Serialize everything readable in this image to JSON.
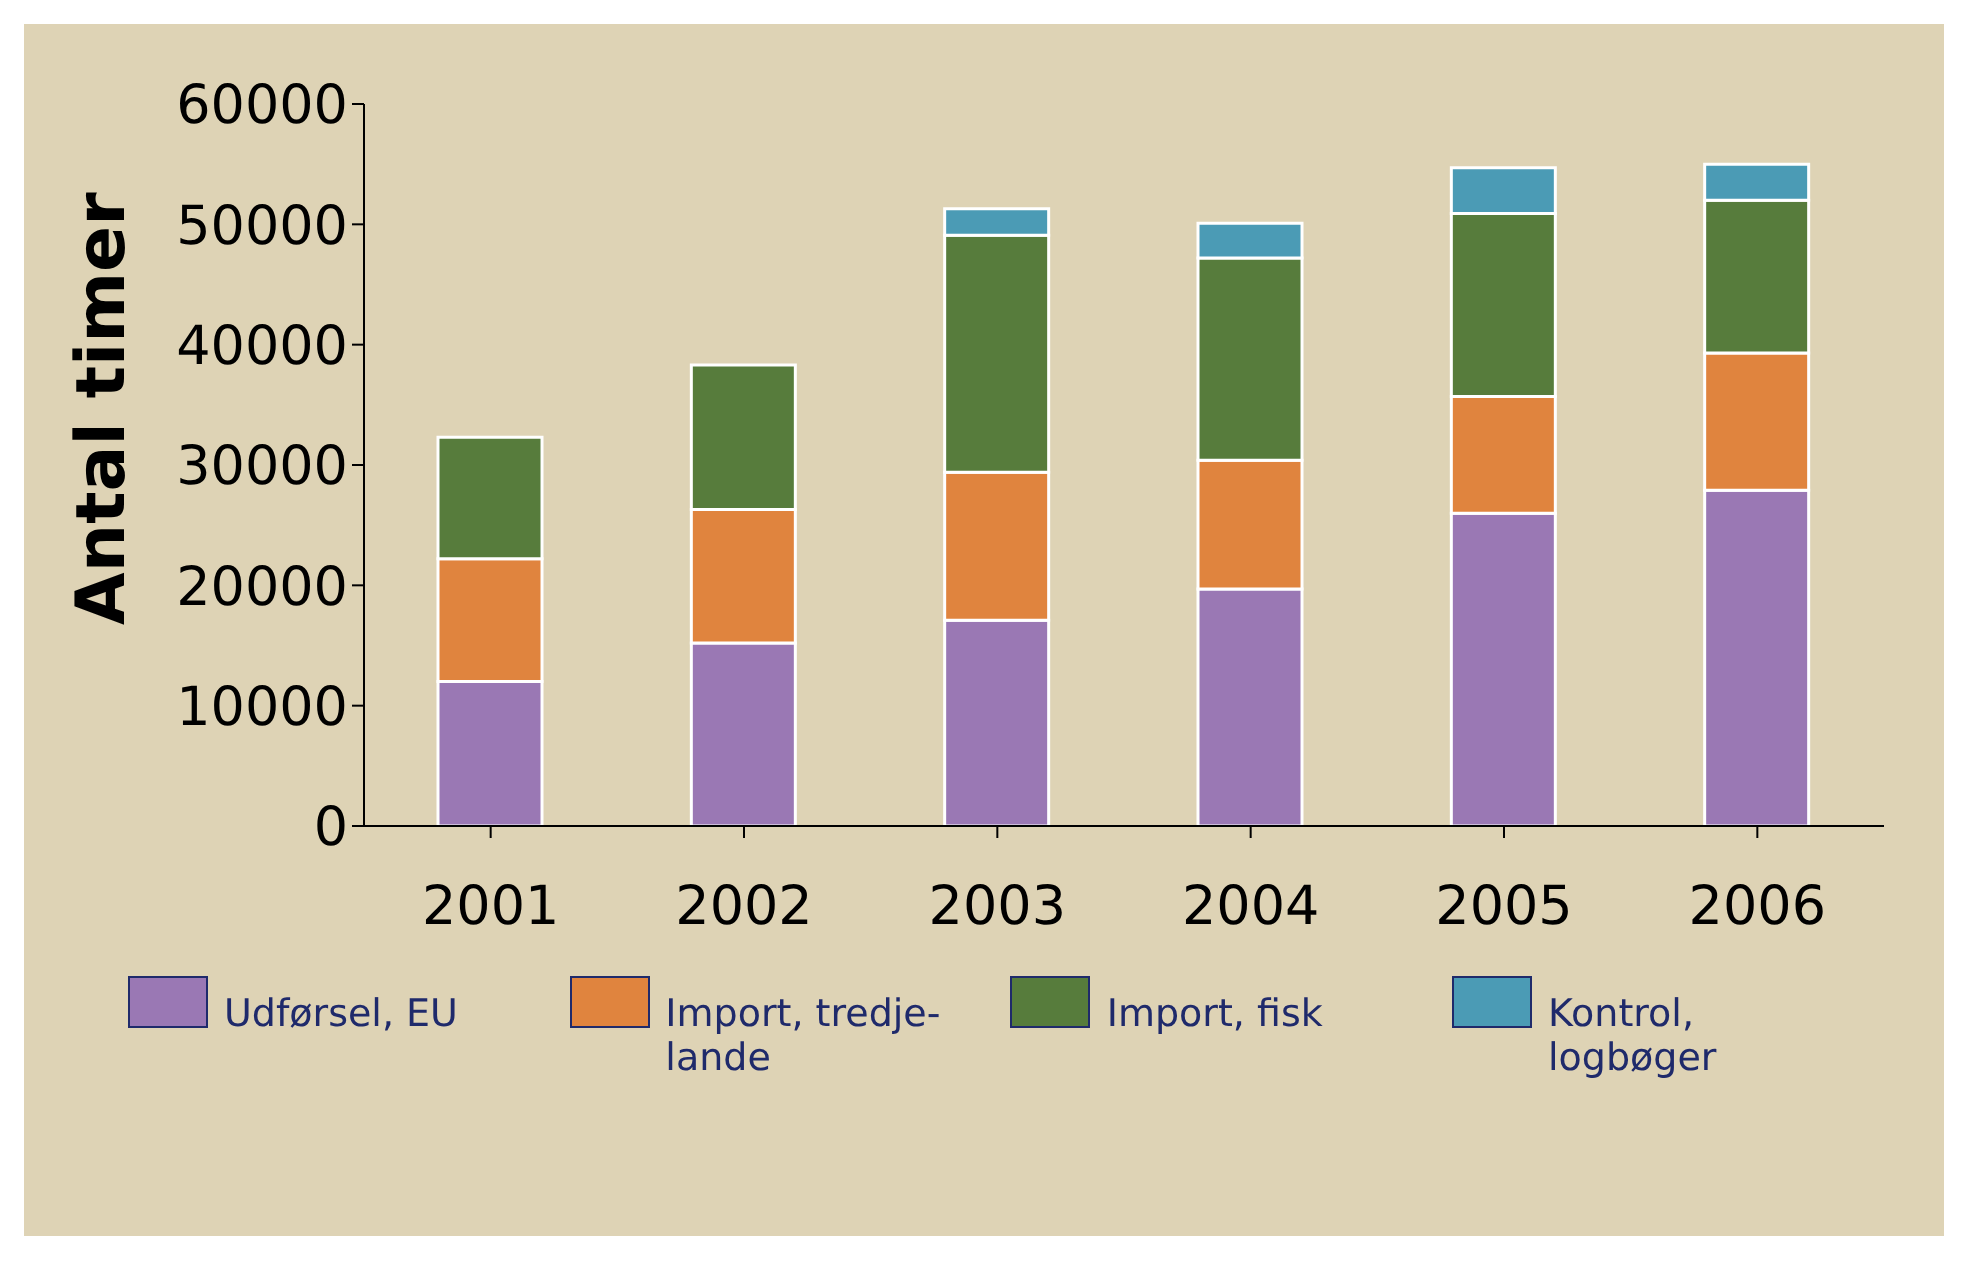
{
  "chart_data": {
    "type": "bar",
    "stacked": true,
    "ylabel": "Antal timer",
    "categories": [
      "2001",
      "2002",
      "2003",
      "2004",
      "2005",
      "2006"
    ],
    "series": [
      {
        "name": "Udførsel, EU",
        "color": "#9a78b4",
        "values": [
          12000,
          15200,
          17100,
          19700,
          26000,
          27900
        ]
      },
      {
        "name": "Import, tredje-lande",
        "color": "#e0843e",
        "values": [
          10200,
          11100,
          12300,
          10700,
          9700,
          11400
        ]
      },
      {
        "name": "Import, fisk",
        "color": "#577c3c",
        "values": [
          10100,
          12000,
          19700,
          16800,
          15200,
          12700
        ]
      },
      {
        "name": "Kontrol, logbøger",
        "color": "#4b9bb5",
        "values": [
          0,
          0,
          2200,
          2900,
          3800,
          3000
        ]
      }
    ],
    "ylim": [
      0,
      60000
    ],
    "yticks": [
      0,
      10000,
      20000,
      30000,
      40000,
      50000,
      60000
    ],
    "grid": false,
    "legend": "bottom"
  }
}
